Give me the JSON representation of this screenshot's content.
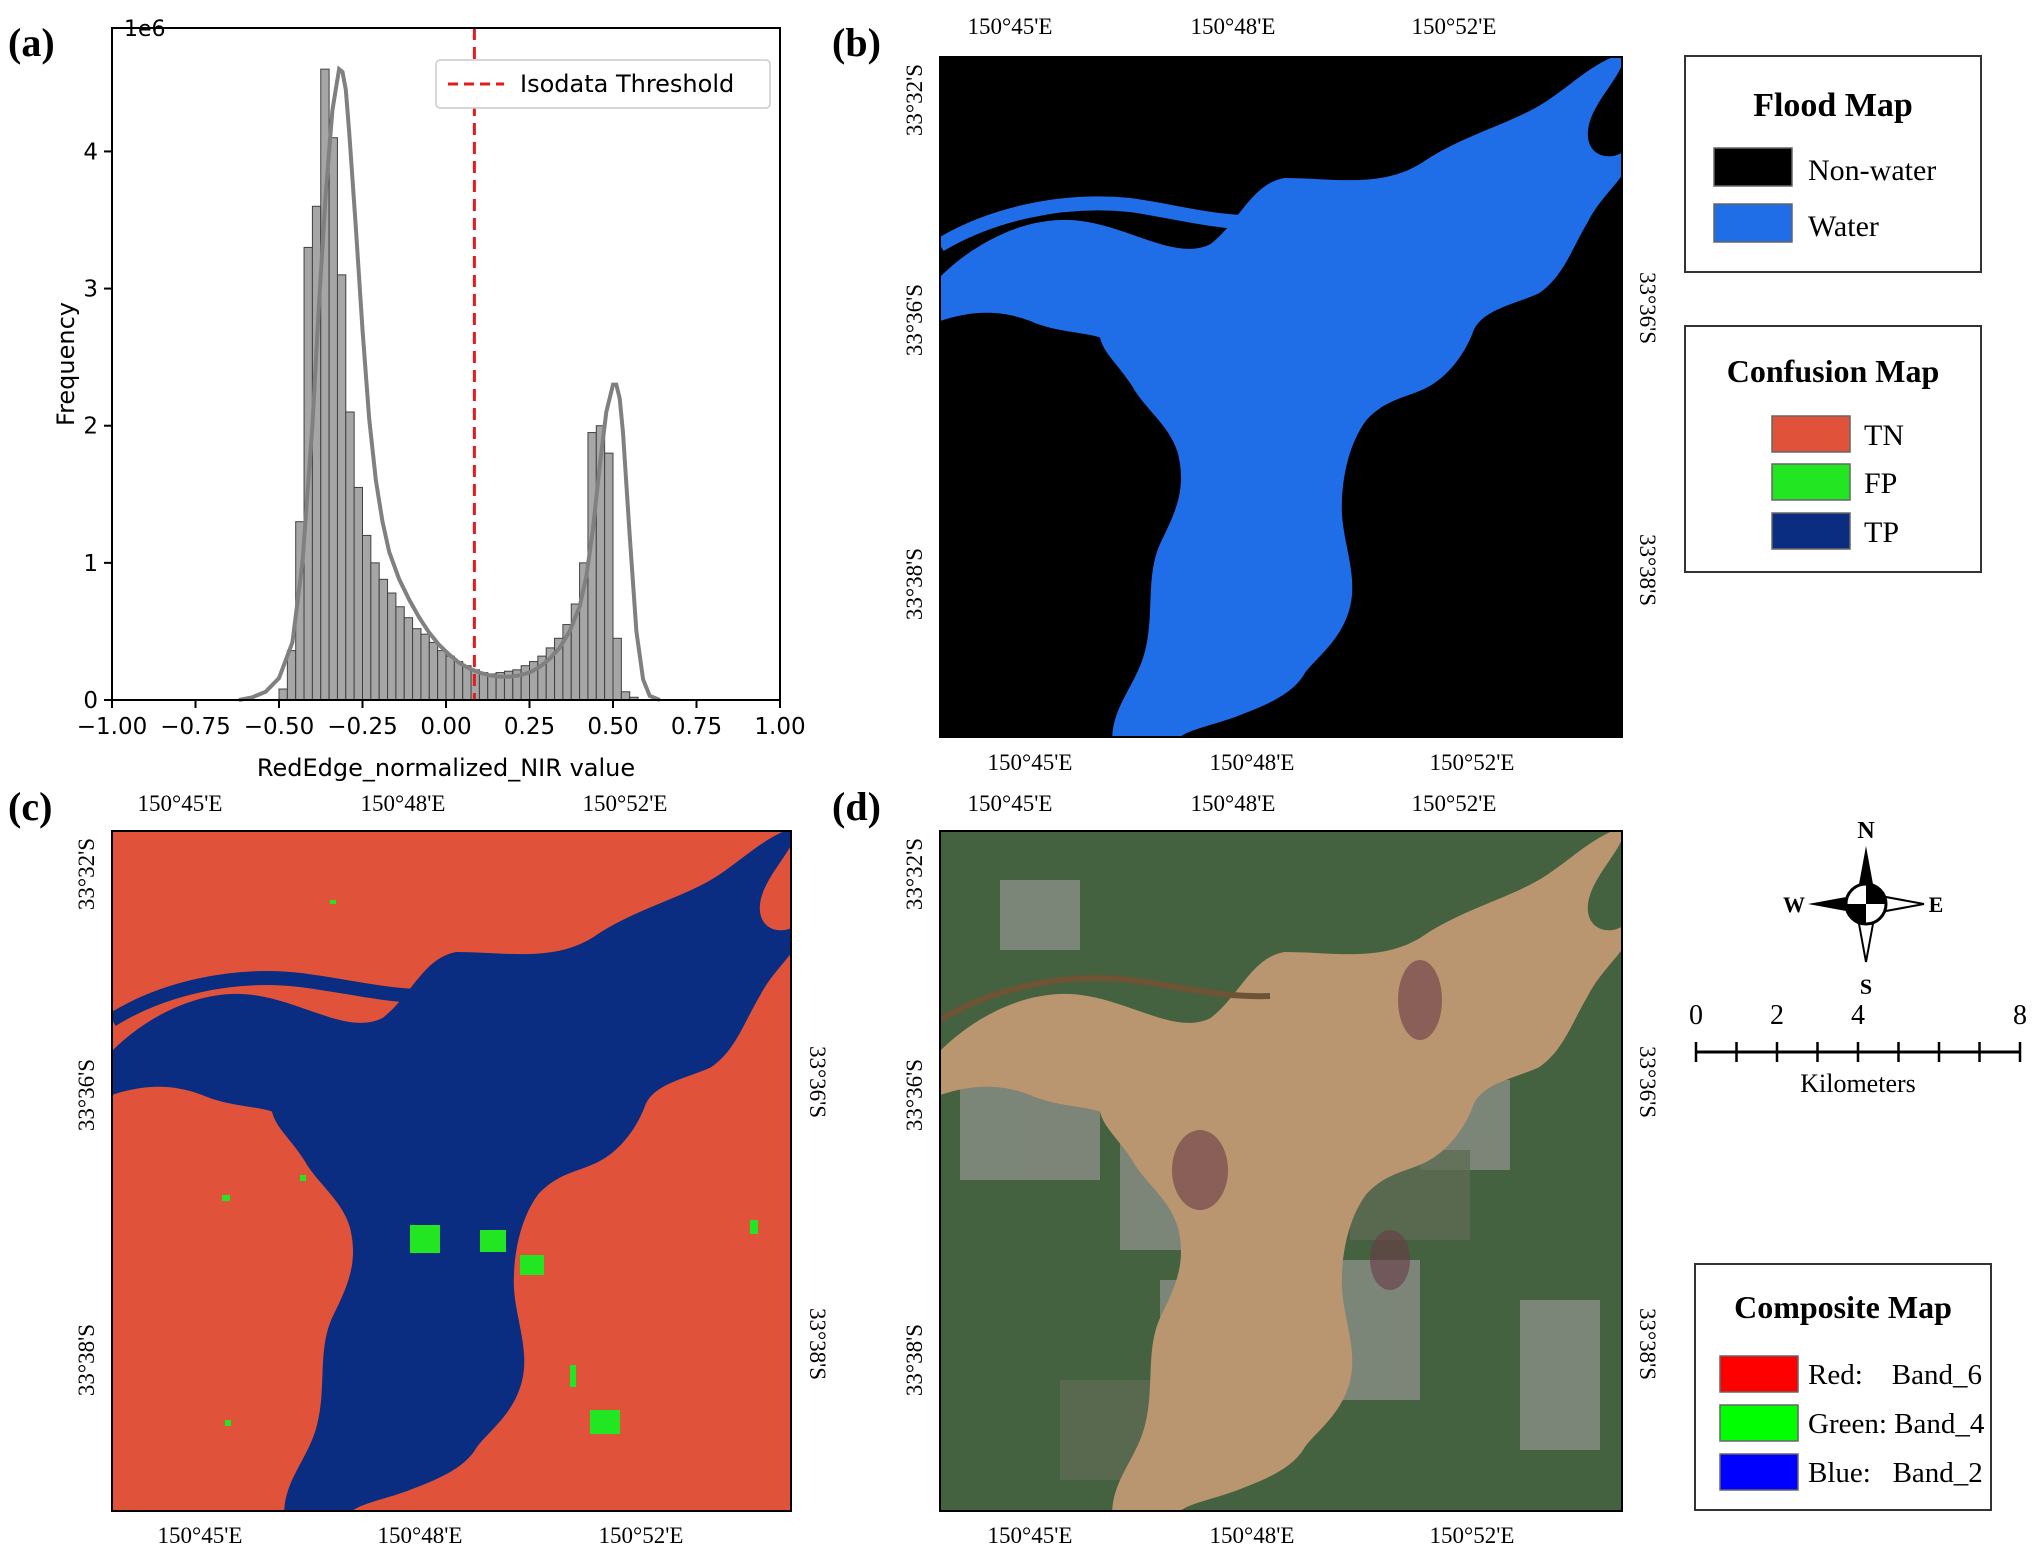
{
  "panels": {
    "a": "(a)",
    "b": "(b)",
    "c": "(c)",
    "d": "(d)"
  },
  "chart_data": {
    "type": "bar",
    "xlabel": "RedEdge_normalized_NIR value",
    "ylabel": "Frequency",
    "y_multiplier": "1e6",
    "xlim": [
      -1.0,
      1.0
    ],
    "ylim": [
      0,
      4.9
    ],
    "xticks": [
      -1.0,
      -0.75,
      -0.5,
      -0.25,
      0.0,
      0.25,
      0.5,
      0.75,
      1.0
    ],
    "xtick_labels": [
      "−1.00",
      "−0.75",
      "−0.50",
      "−0.25",
      "0.00",
      "0.25",
      "0.50",
      "0.75",
      "1.00"
    ],
    "yticks": [
      0,
      1,
      2,
      3,
      4
    ],
    "bin_width": 0.025,
    "bin_starts": [
      -0.5,
      -0.475,
      -0.45,
      -0.425,
      -0.4,
      -0.375,
      -0.35,
      -0.325,
      -0.3,
      -0.275,
      -0.25,
      -0.225,
      -0.2,
      -0.175,
      -0.15,
      -0.125,
      -0.1,
      -0.075,
      -0.05,
      -0.025,
      0.0,
      0.025,
      0.05,
      0.075,
      0.1,
      0.125,
      0.15,
      0.175,
      0.2,
      0.225,
      0.25,
      0.275,
      0.3,
      0.325,
      0.35,
      0.375,
      0.4,
      0.425,
      0.45,
      0.475,
      0.5,
      0.525,
      0.55
    ],
    "values": [
      0.08,
      0.36,
      1.3,
      3.3,
      3.6,
      4.6,
      4.1,
      3.1,
      2.1,
      1.55,
      1.2,
      1.0,
      0.88,
      0.78,
      0.68,
      0.6,
      0.52,
      0.48,
      0.42,
      0.36,
      0.32,
      0.28,
      0.25,
      0.22,
      0.2,
      0.19,
      0.2,
      0.21,
      0.22,
      0.25,
      0.28,
      0.32,
      0.38,
      0.45,
      0.55,
      0.7,
      1.0,
      1.95,
      2.0,
      1.8,
      0.45,
      0.06,
      0.02
    ],
    "kde": {
      "x": [
        -0.62,
        -0.58,
        -0.54,
        -0.5,
        -0.46,
        -0.43,
        -0.4,
        -0.38,
        -0.36,
        -0.34,
        -0.32,
        -0.31,
        -0.3,
        -0.29,
        -0.27,
        -0.25,
        -0.23,
        -0.21,
        -0.19,
        -0.17,
        -0.14,
        -0.11,
        -0.08,
        -0.05,
        -0.02,
        0.01,
        0.04,
        0.07,
        0.1,
        0.13,
        0.16,
        0.19,
        0.22,
        0.25,
        0.28,
        0.31,
        0.34,
        0.37,
        0.4,
        0.42,
        0.44,
        0.46,
        0.48,
        0.5,
        0.51,
        0.52,
        0.53,
        0.55,
        0.57,
        0.59,
        0.61,
        0.64
      ],
      "y": [
        0.0,
        0.02,
        0.06,
        0.16,
        0.42,
        1.0,
        2.0,
        2.9,
        3.7,
        4.3,
        4.6,
        4.58,
        4.45,
        4.15,
        3.45,
        2.7,
        2.05,
        1.6,
        1.3,
        1.08,
        0.88,
        0.73,
        0.6,
        0.49,
        0.4,
        0.33,
        0.27,
        0.23,
        0.2,
        0.18,
        0.17,
        0.17,
        0.18,
        0.2,
        0.24,
        0.3,
        0.38,
        0.5,
        0.68,
        0.9,
        1.25,
        1.7,
        2.1,
        2.3,
        2.3,
        2.2,
        1.95,
        1.2,
        0.5,
        0.15,
        0.03,
        0.0
      ]
    },
    "threshold": 0.085,
    "legend": "Isodata Threshold",
    "legend_position": "top-right",
    "threshold_color": "#e41a1c",
    "bar_color": "#a6a6a6",
    "kde_color": "#808080"
  },
  "map_labels": {
    "lon": [
      "150°45'E",
      "150°48'E",
      "150°52'E"
    ],
    "lat_top": "33°32'S",
    "lat_mid": "33°36'S",
    "lat_low": "33°38'S"
  },
  "legends": {
    "flood": {
      "title": "Flood Map",
      "items": [
        {
          "label": "Non-water",
          "color": "#000000"
        },
        {
          "label": "Water",
          "color": "#1f6ee8"
        }
      ]
    },
    "confusion": {
      "title": "Confusion Map",
      "items": [
        {
          "label": "TN",
          "color": "#e0533a"
        },
        {
          "label": "FP",
          "color": "#22e622"
        },
        {
          "label": "TP",
          "color": "#0a2d82"
        }
      ]
    },
    "composite": {
      "title": "Composite Map",
      "items": [
        {
          "label": "Red:    Band_6",
          "color": "#ff0000"
        },
        {
          "label": "Green: Band_4",
          "color": "#00ff00"
        },
        {
          "label": "Blue:   Band_2",
          "color": "#0000ff"
        }
      ]
    }
  },
  "north_arrow": {
    "n": "N",
    "s": "S",
    "e": "E",
    "w": "W"
  },
  "scale_bar": {
    "ticks": [
      "0",
      "2",
      "4",
      "8"
    ],
    "unit": "Kilometers"
  },
  "colors": {
    "water": "#1f6ee8",
    "tn": "#e0533a",
    "tp": "#0a2d82",
    "fp": "#22e622",
    "flood_brown": "#b9966f",
    "vegetation": "#3d5b3a"
  }
}
